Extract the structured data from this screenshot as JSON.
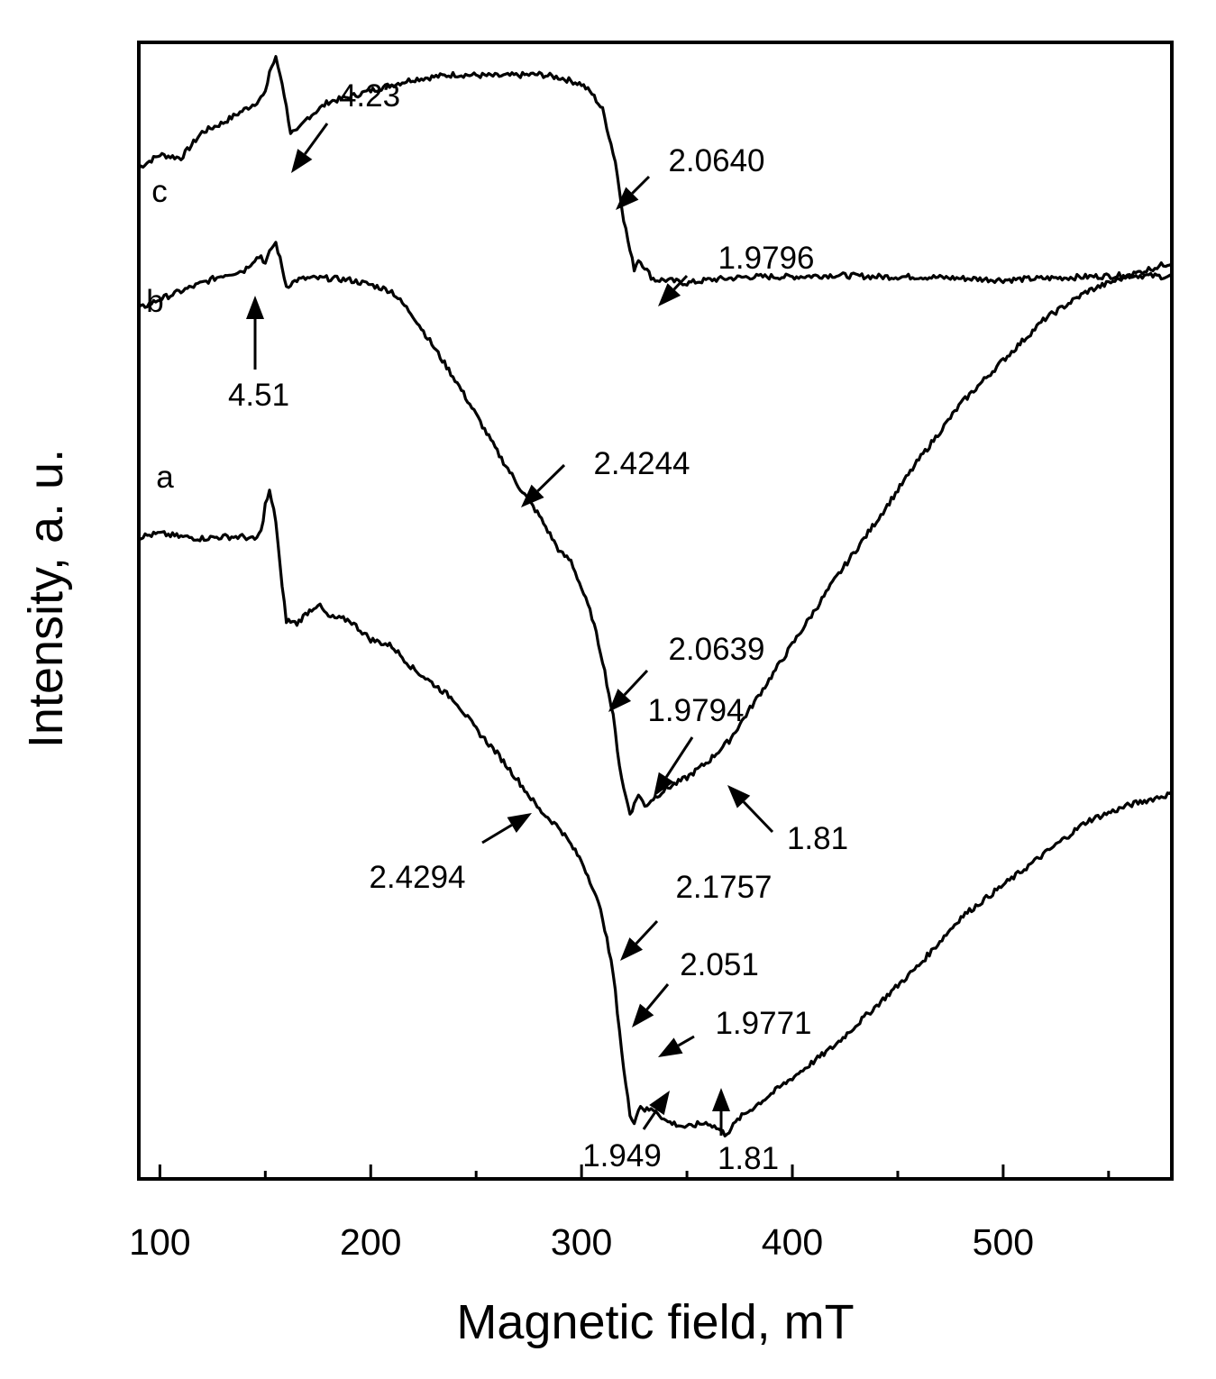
{
  "chart_data": {
    "type": "line",
    "title": "",
    "xlabel": "Magnetic field, mT",
    "ylabel": "Intensity, a. u.",
    "xlim": [
      90,
      580
    ],
    "x_ticks": [
      100,
      200,
      300,
      400,
      500
    ],
    "y_ticks_labeled": false,
    "grid": false,
    "legend": "none",
    "series": [
      {
        "name": "c",
        "x": [
          90,
          100,
          110,
          120,
          130,
          140,
          145,
          150,
          152,
          155,
          158,
          162,
          165,
          170,
          180,
          190,
          200,
          220,
          240,
          260,
          280,
          290,
          300,
          305,
          310,
          313,
          316,
          318,
          320,
          323,
          325,
          327,
          330,
          333,
          335,
          340,
          350,
          360,
          380,
          400,
          420,
          440,
          460,
          480,
          500,
          520,
          540,
          560,
          580
        ],
        "values": [
          -0.48,
          -0.4,
          -0.42,
          -0.26,
          -0.2,
          -0.12,
          -0.08,
          -0.02,
          0.12,
          0.2,
          0.05,
          -0.26,
          -0.26,
          -0.17,
          -0.07,
          -0.04,
          0.0,
          0.07,
          0.1,
          0.09,
          0.1,
          0.08,
          0.04,
          -0.02,
          -0.12,
          -0.28,
          -0.44,
          -0.62,
          -0.8,
          -1.0,
          -1.11,
          -1.05,
          -1.1,
          -1.16,
          -1.18,
          -1.18,
          -1.2,
          -1.18,
          -1.16,
          -1.16,
          -1.15,
          -1.16,
          -1.16,
          -1.17,
          -1.18,
          -1.17,
          -1.16,
          -1.15,
          -1.16
        ]
      },
      {
        "name": "b",
        "x": [
          90,
          100,
          120,
          130,
          140,
          145,
          148,
          150,
          153,
          155,
          157,
          160,
          165,
          170,
          180,
          190,
          200,
          210,
          220,
          230,
          235,
          240,
          250,
          260,
          270,
          280,
          290,
          295,
          300,
          305,
          310,
          315,
          318,
          320,
          323,
          325,
          327,
          330,
          333,
          340,
          350,
          360,
          370,
          380,
          390,
          400,
          410,
          420,
          440,
          460,
          480,
          500,
          520,
          540,
          560,
          580
        ],
        "values": [
          -1.36,
          -1.3,
          -1.2,
          -1.15,
          -1.12,
          -1.05,
          -1.03,
          -1.08,
          -0.98,
          -0.95,
          -1.05,
          -1.22,
          -1.18,
          -1.17,
          -1.17,
          -1.18,
          -1.21,
          -1.25,
          -1.4,
          -1.6,
          -1.7,
          -1.8,
          -2.02,
          -2.25,
          -2.46,
          -2.65,
          -2.88,
          -2.93,
          -3.1,
          -3.28,
          -3.55,
          -3.9,
          -4.2,
          -4.35,
          -4.5,
          -4.45,
          -4.38,
          -4.46,
          -4.42,
          -4.35,
          -4.28,
          -4.18,
          -4.05,
          -3.85,
          -3.65,
          -3.45,
          -3.25,
          -3.05,
          -2.68,
          -2.3,
          -1.95,
          -1.68,
          -1.42,
          -1.25,
          -1.15,
          -1.07
        ]
      },
      {
        "name": "a",
        "x": [
          90,
          100,
          110,
          120,
          130,
          140,
          145,
          148,
          150,
          152,
          155,
          158,
          160,
          165,
          170,
          175,
          180,
          190,
          200,
          210,
          220,
          230,
          240,
          250,
          260,
          270,
          280,
          290,
          300,
          305,
          310,
          315,
          318,
          320,
          323,
          325,
          328,
          330,
          335,
          340,
          345,
          350,
          355,
          360,
          365,
          368,
          370,
          375,
          380,
          390,
          400,
          410,
          420,
          440,
          460,
          480,
          500,
          520,
          540,
          560,
          580
        ],
        "values": [
          -2.78,
          -2.76,
          -2.78,
          -2.79,
          -2.78,
          -2.78,
          -2.8,
          -2.75,
          -2.58,
          -2.5,
          -2.68,
          -3.1,
          -3.3,
          -3.32,
          -3.25,
          -3.2,
          -3.28,
          -3.3,
          -3.42,
          -3.46,
          -3.6,
          -3.7,
          -3.8,
          -3.98,
          -4.13,
          -4.3,
          -4.48,
          -4.6,
          -4.8,
          -4.95,
          -5.15,
          -5.5,
          -5.85,
          -6.1,
          -6.38,
          -6.42,
          -6.32,
          -6.35,
          -6.35,
          -6.42,
          -6.44,
          -6.46,
          -6.44,
          -6.43,
          -6.47,
          -6.5,
          -6.48,
          -6.4,
          -6.35,
          -6.25,
          -6.15,
          -6.05,
          -5.95,
          -5.7,
          -5.45,
          -5.15,
          -4.95,
          -4.75,
          -4.55,
          -4.45,
          -4.38
        ]
      }
    ],
    "curve_labels": [
      {
        "text": "c",
        "series": "c"
      },
      {
        "text": "b",
        "series": "b"
      },
      {
        "text": "a",
        "series": "a"
      }
    ],
    "annotations": [
      {
        "text": "4.23",
        "series": "c"
      },
      {
        "text": "2.0640",
        "series": "c"
      },
      {
        "text": "1.9796",
        "series": "c"
      },
      {
        "text": "4.51",
        "series": "b"
      },
      {
        "text": "2.4244",
        "series": "b"
      },
      {
        "text": "2.0639",
        "series": "b"
      },
      {
        "text": "1.9794",
        "series": "b"
      },
      {
        "text": "1.81",
        "series": "b"
      },
      {
        "text": "2.4294",
        "series": "a"
      },
      {
        "text": "2.1757",
        "series": "a"
      },
      {
        "text": "2.051",
        "series": "a"
      },
      {
        "text": "1.9771",
        "series": "a"
      },
      {
        "text": "1.949",
        "series": "a"
      },
      {
        "text": "1.81",
        "series": "a"
      }
    ]
  }
}
